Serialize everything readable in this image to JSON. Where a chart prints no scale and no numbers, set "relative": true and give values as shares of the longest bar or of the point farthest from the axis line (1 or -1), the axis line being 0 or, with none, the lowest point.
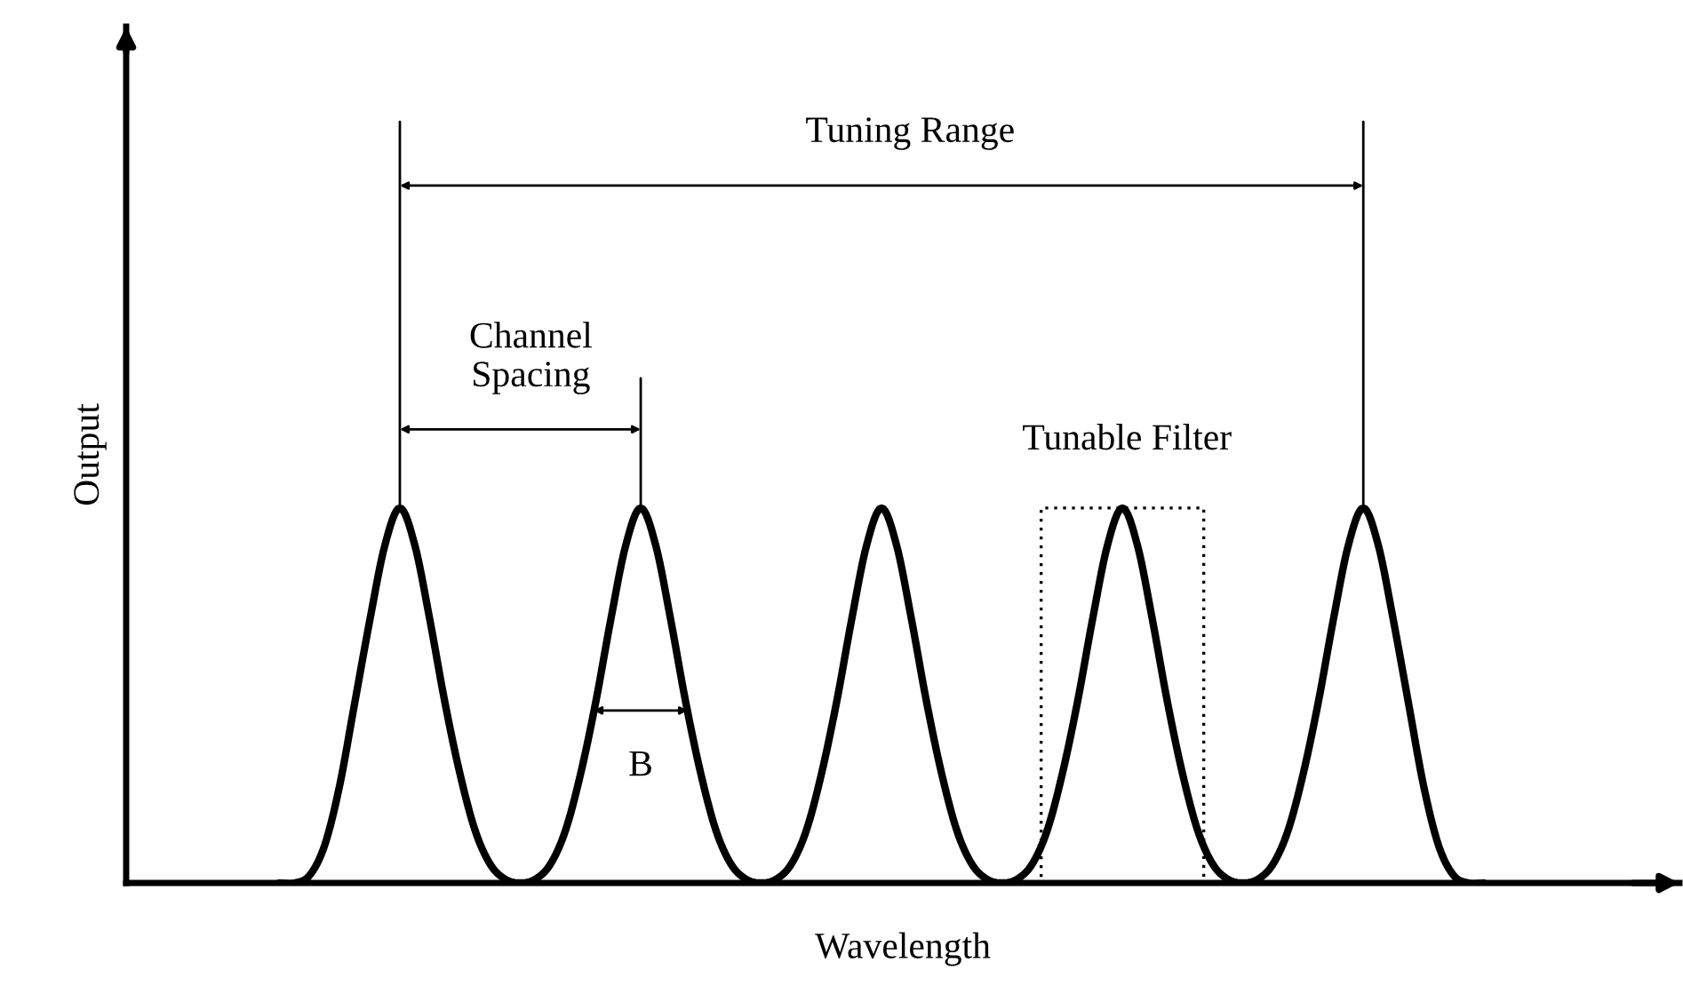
{
  "chart_data": {
    "type": "line",
    "relative": true,
    "tick_labels": false,
    "xlabel": "Wavelength",
    "ylabel": "Output",
    "categories": [
      null,
      null,
      null,
      null,
      null,
      null,
      null,
      null,
      null,
      null,
      null,
      null,
      null,
      null,
      null,
      null,
      null,
      null,
      null,
      null,
      null,
      null,
      null,
      null,
      null,
      null,
      null,
      null,
      null,
      null,
      null,
      null,
      null,
      null,
      null,
      null,
      null,
      null,
      null,
      null,
      null,
      null,
      null,
      null,
      null,
      null,
      null,
      null,
      null,
      null,
      null,
      null,
      null,
      null,
      null,
      null,
      null,
      null,
      null,
      null,
      null,
      null,
      null,
      null,
      null,
      null,
      null,
      null,
      null,
      null,
      null,
      null,
      null,
      null,
      null,
      null,
      null,
      null,
      null,
      null,
      null
    ],
    "series": [
      {
        "color": "#000000",
        "values": [
          0,
          0,
          0.02,
          0.1,
          0.26,
          0.48,
          0.7,
          0.9,
          1,
          0.9,
          0.7,
          0.48,
          0.29,
          0.14,
          0.05,
          0.01,
          0,
          0.01,
          0.05,
          0.14,
          0.29,
          0.48,
          0.7,
          0.9,
          1,
          0.9,
          0.7,
          0.48,
          0.29,
          0.14,
          0.05,
          0.01,
          0,
          0.01,
          0.05,
          0.14,
          0.29,
          0.48,
          0.7,
          0.9,
          1,
          0.9,
          0.7,
          0.48,
          0.29,
          0.14,
          0.05,
          0.01,
          0,
          0.01,
          0.05,
          0.14,
          0.29,
          0.48,
          0.7,
          0.9,
          1,
          0.9,
          0.7,
          0.48,
          0.29,
          0.14,
          0.05,
          0.01,
          0,
          0.01,
          0.05,
          0.14,
          0.29,
          0.48,
          0.7,
          0.9,
          1,
          0.9,
          0.7,
          0.48,
          0.26,
          0.1,
          0.02,
          0,
          0
        ]
      }
    ],
    "annotations": [
      "Tuning Range",
      "Channel\nSpacing",
      "Tunable Filter",
      "B"
    ]
  }
}
